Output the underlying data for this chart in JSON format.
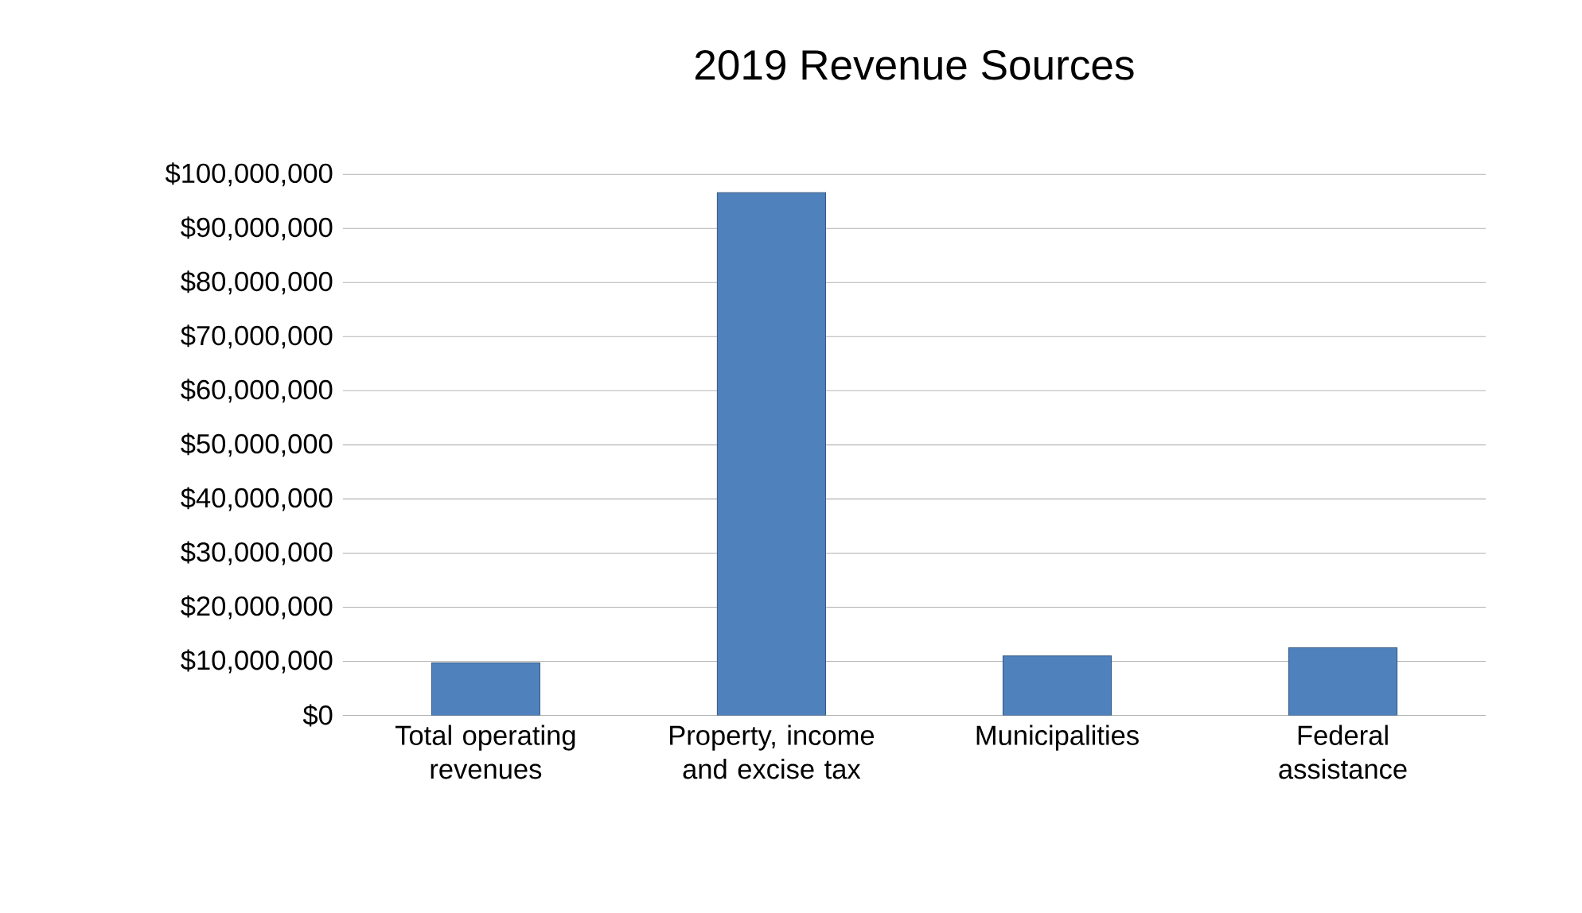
{
  "chart_data": {
    "type": "bar",
    "title": "2019 Revenue Sources",
    "categories": [
      "Total operating revenues",
      "Property, income and excise tax",
      "Municipalities",
      "Federal assistance"
    ],
    "values": [
      9700000,
      96600000,
      11000000,
      12500000
    ],
    "color": "#4f81bd",
    "ylim": [
      0,
      100000000
    ],
    "yticks": [
      {
        "value": 0,
        "label": "$0"
      },
      {
        "value": 10000000,
        "label": "$10,000,000"
      },
      {
        "value": 20000000,
        "label": "$20,000,000"
      },
      {
        "value": 30000000,
        "label": "$30,000,000"
      },
      {
        "value": 40000000,
        "label": "$40,000,000"
      },
      {
        "value": 50000000,
        "label": "$50,000,000"
      },
      {
        "value": 60000000,
        "label": "$60,000,000"
      },
      {
        "value": 70000000,
        "label": "$70,000,000"
      },
      {
        "value": 80000000,
        "label": "$80,000,000"
      },
      {
        "value": 90000000,
        "label": "$90,000,000"
      },
      {
        "value": 100000000,
        "label": "$100,000,000"
      }
    ],
    "grid": "y"
  }
}
